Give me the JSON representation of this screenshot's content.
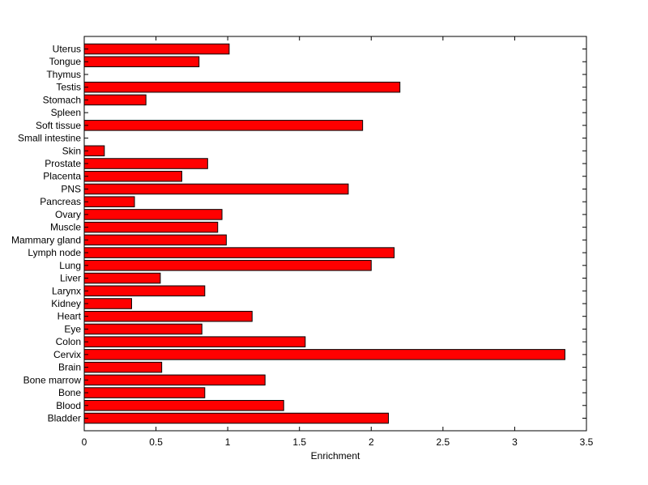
{
  "chart_data": {
    "type": "bar",
    "orientation": "horizontal",
    "title": "",
    "xlabel": "Enrichment",
    "ylabel": "",
    "xlim": [
      0,
      3.5
    ],
    "xticks": [
      0,
      0.5,
      1,
      1.5,
      2,
      2.5,
      3,
      3.5
    ],
    "xtick_labels": [
      "0",
      "0.5",
      "1",
      "1.5",
      "2",
      "2.5",
      "3",
      "3.5"
    ],
    "grid": false,
    "legend": "none",
    "bar_color": "#ff0000",
    "categories": [
      "Bladder",
      "Blood",
      "Bone",
      "Bone marrow",
      "Brain",
      "Cervix",
      "Colon",
      "Eye",
      "Heart",
      "Kidney",
      "Larynx",
      "Liver",
      "Lung",
      "Lymph node",
      "Mammary gland",
      "Muscle",
      "Ovary",
      "Pancreas",
      "PNS",
      "Placenta",
      "Prostate",
      "Skin",
      "Small intestine",
      "Soft tissue",
      "Spleen",
      "Stomach",
      "Testis",
      "Thymus",
      "Tongue",
      "Uterus"
    ],
    "values": [
      2.12,
      1.39,
      0.84,
      1.26,
      0.54,
      3.35,
      1.54,
      0.82,
      1.17,
      0.33,
      0.84,
      0.53,
      2.0,
      2.16,
      0.99,
      0.93,
      0.96,
      0.35,
      1.84,
      0.68,
      0.86,
      0.14,
      0,
      1.94,
      0,
      0.43,
      2.2,
      0,
      0.8,
      1.01
    ]
  }
}
